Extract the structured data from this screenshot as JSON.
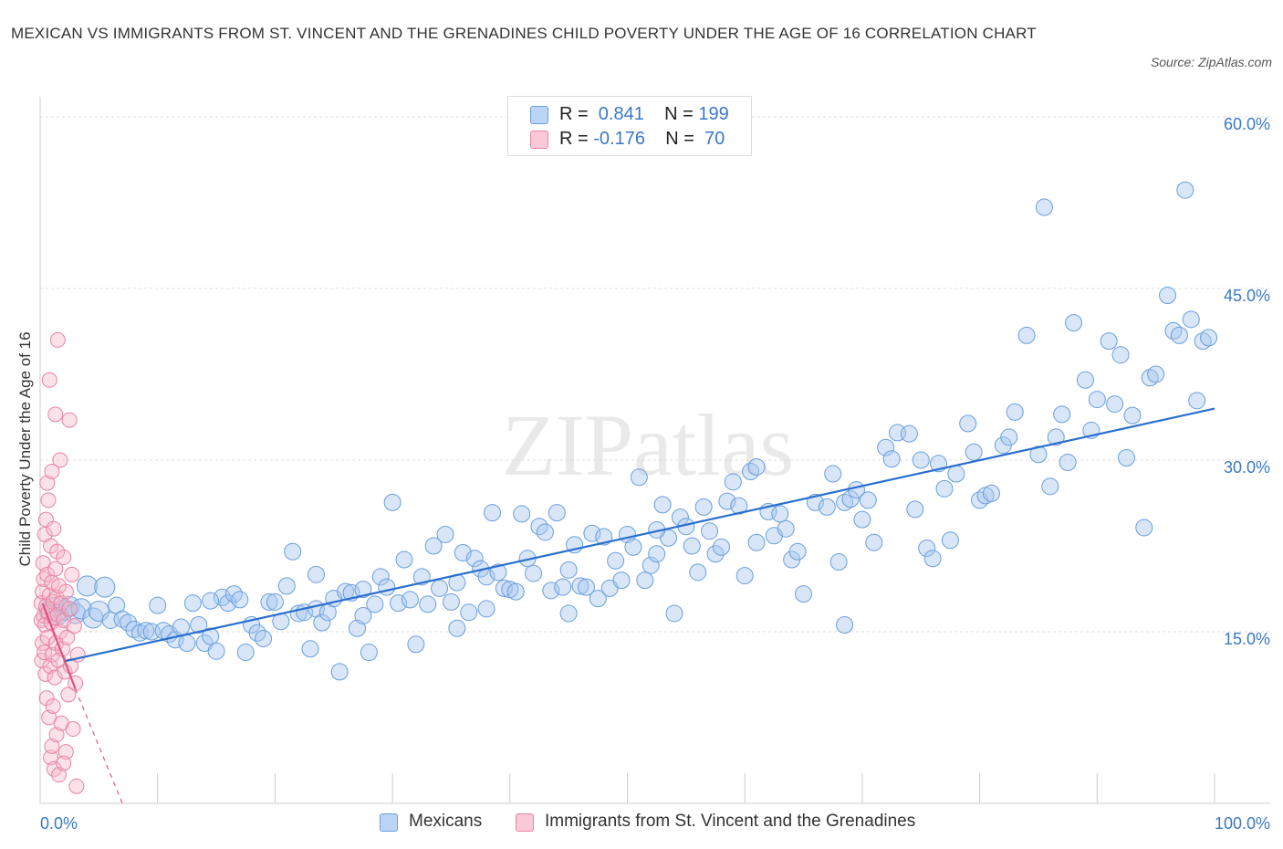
{
  "title": "MEXICAN VS IMMIGRANTS FROM ST. VINCENT AND THE GRENADINES CHILD POVERTY UNDER THE AGE OF 16 CORRELATION CHART",
  "source": "Source: ZipAtlas.com",
  "watermark": "ZIPatlas",
  "colors": {
    "mexicans_fill": "#a9c8f0",
    "mexicans_stroke": "#6a9fdc",
    "mexicans_line": "#2a6fcf",
    "immigrants_fill": "#f5b7c9",
    "immigrants_stroke": "#e883a3",
    "immigrants_line": "#e0527f",
    "axis_label": "#3a78c9"
  },
  "legend": {
    "rows": [
      {
        "r_label": "R = ",
        "r_value": " 0.841",
        "n_label": "N = ",
        "n_value": "199"
      },
      {
        "r_label": "R = ",
        "r_value": "-0.176",
        "n_label": "N = ",
        "n_value": " 70"
      }
    ]
  },
  "chart_data": {
    "type": "scatter",
    "title": "MEXICAN VS IMMIGRANTS FROM ST. VINCENT AND THE GRENADINES CHILD POVERTY UNDER THE AGE OF 16 CORRELATION CHART",
    "xlabel": "",
    "ylabel": "Child Poverty Under the Age of 16",
    "xlim": [
      0,
      100
    ],
    "ylim": [
      0,
      60
    ],
    "x_tick_labels": [
      "0.0%",
      "100.0%"
    ],
    "y_ticks": [
      15,
      30,
      45,
      60
    ],
    "y_tick_labels": [
      "15.0%",
      "30.0%",
      "45.0%",
      "60.0%"
    ],
    "grid": "horizontal dashed",
    "legend_position": "top-center",
    "series": [
      {
        "name": "Mexicans",
        "r": 0.841,
        "n": 199,
        "trend": {
          "x0": 2,
          "y0": 12.4,
          "x1": 100,
          "y1": 34.5
        },
        "points": [
          [
            0.8,
            16.8
          ],
          [
            1.2,
            17.1
          ],
          [
            1.5,
            16.5
          ],
          [
            2,
            16.9
          ],
          [
            2.5,
            17.2
          ],
          [
            3,
            16.6
          ],
          [
            3.5,
            17.0
          ],
          [
            4,
            19.0
          ],
          [
            4.5,
            16.2
          ],
          [
            5,
            16.8
          ],
          [
            5.5,
            18.9
          ],
          [
            6,
            16.0
          ],
          [
            6.5,
            17.3
          ],
          [
            7,
            16.1
          ],
          [
            7.5,
            15.8
          ],
          [
            8,
            15.2
          ],
          [
            8.5,
            14.9
          ],
          [
            9,
            15.1
          ],
          [
            9.5,
            15.0
          ],
          [
            10,
            17.3
          ],
          [
            10.5,
            15.1
          ],
          [
            11,
            14.8
          ],
          [
            11.5,
            14.3
          ],
          [
            12,
            15.4
          ],
          [
            12.5,
            14.0
          ],
          [
            13,
            17.5
          ],
          [
            13.5,
            15.6
          ],
          [
            14,
            14.0
          ],
          [
            14.5,
            14.6
          ],
          [
            15,
            13.3
          ],
          [
            15.5,
            18.0
          ],
          [
            16,
            17.5
          ],
          [
            16.5,
            18.3
          ],
          [
            17,
            17.8
          ],
          [
            17.5,
            13.2
          ],
          [
            18,
            15.6
          ],
          [
            18.5,
            14.9
          ],
          [
            19,
            14.4
          ],
          [
            19.5,
            17.6
          ],
          [
            20,
            17.6
          ],
          [
            20.5,
            15.9
          ],
          [
            21,
            19.0
          ],
          [
            21.5,
            22.0
          ],
          [
            22,
            16.6
          ],
          [
            22.5,
            16.7
          ],
          [
            23,
            13.5
          ],
          [
            23.5,
            17.0
          ],
          [
            24,
            15.8
          ],
          [
            24.5,
            16.7
          ],
          [
            25,
            17.9
          ],
          [
            25.5,
            11.5
          ],
          [
            26,
            18.5
          ],
          [
            26.5,
            18.4
          ],
          [
            27,
            15.3
          ],
          [
            27.5,
            18.7
          ],
          [
            28,
            13.2
          ],
          [
            28.5,
            17.4
          ],
          [
            29,
            19.8
          ],
          [
            29.5,
            18.9
          ],
          [
            30,
            26.3
          ],
          [
            30.5,
            17.5
          ],
          [
            31,
            21.3
          ],
          [
            31.5,
            17.8
          ],
          [
            32,
            13.9
          ],
          [
            32.5,
            19.8
          ],
          [
            33,
            17.4
          ],
          [
            33.5,
            22.5
          ],
          [
            34,
            18.8
          ],
          [
            34.5,
            23.5
          ],
          [
            35,
            17.6
          ],
          [
            35.5,
            19.3
          ],
          [
            36,
            21.9
          ],
          [
            36.5,
            16.7
          ],
          [
            37,
            21.4
          ],
          [
            37.5,
            20.5
          ],
          [
            38,
            19.8
          ],
          [
            38.5,
            25.4
          ],
          [
            39,
            20.2
          ],
          [
            39.5,
            18.8
          ],
          [
            40,
            18.7
          ],
          [
            40.5,
            18.5
          ],
          [
            41,
            25.3
          ],
          [
            41.5,
            21.4
          ],
          [
            42,
            20.1
          ],
          [
            42.5,
            24.2
          ],
          [
            43,
            23.7
          ],
          [
            43.5,
            18.6
          ],
          [
            44,
            25.4
          ],
          [
            44.5,
            18.9
          ],
          [
            45,
            20.4
          ],
          [
            45.5,
            22.6
          ],
          [
            46,
            19.0
          ],
          [
            46.5,
            18.9
          ],
          [
            47,
            23.6
          ],
          [
            47.5,
            17.9
          ],
          [
            48,
            23.3
          ],
          [
            48.5,
            18.8
          ],
          [
            49,
            21.2
          ],
          [
            49.5,
            19.5
          ],
          [
            50,
            23.5
          ],
          [
            50.5,
            22.4
          ],
          [
            51,
            28.5
          ],
          [
            51.5,
            19.5
          ],
          [
            52,
            20.8
          ],
          [
            52.5,
            21.8
          ],
          [
            53,
            26.1
          ],
          [
            53.5,
            23.2
          ],
          [
            54,
            16.6
          ],
          [
            54.5,
            25.0
          ],
          [
            55,
            24.2
          ],
          [
            55.5,
            22.5
          ],
          [
            56,
            20.2
          ],
          [
            56.5,
            25.9
          ],
          [
            57,
            23.8
          ],
          [
            57.5,
            21.8
          ],
          [
            58,
            22.4
          ],
          [
            58.5,
            26.4
          ],
          [
            59,
            28.1
          ],
          [
            59.5,
            26.0
          ],
          [
            60,
            19.9
          ],
          [
            60.5,
            29.0
          ],
          [
            61,
            29.4
          ],
          [
            62,
            25.5
          ],
          [
            62.5,
            23.4
          ],
          [
            63,
            25.3
          ],
          [
            63.5,
            24.0
          ],
          [
            64,
            21.3
          ],
          [
            64.5,
            22.0
          ],
          [
            65,
            18.3
          ],
          [
            66,
            26.3
          ],
          [
            67,
            25.9
          ],
          [
            67.5,
            28.8
          ],
          [
            68,
            21.1
          ],
          [
            68.5,
            26.3
          ],
          [
            69,
            26.6
          ],
          [
            69.5,
            27.4
          ],
          [
            70,
            24.8
          ],
          [
            70.5,
            26.5
          ],
          [
            71,
            22.8
          ],
          [
            72,
            31.1
          ],
          [
            72.5,
            30.1
          ],
          [
            73,
            32.4
          ],
          [
            74,
            32.3
          ],
          [
            74.5,
            25.7
          ],
          [
            75,
            30.0
          ],
          [
            75.5,
            22.3
          ],
          [
            76,
            21.4
          ],
          [
            76.5,
            29.7
          ],
          [
            77,
            27.5
          ],
          [
            77.5,
            23.0
          ],
          [
            78,
            28.8
          ],
          [
            79,
            33.2
          ],
          [
            79.5,
            30.7
          ],
          [
            80,
            26.5
          ],
          [
            80.5,
            26.9
          ],
          [
            81,
            27.1
          ],
          [
            82,
            31.3
          ],
          [
            82.5,
            32.0
          ],
          [
            83,
            34.2
          ],
          [
            84,
            40.9
          ],
          [
            85,
            30.5
          ],
          [
            85.5,
            52.1
          ],
          [
            86,
            27.7
          ],
          [
            86.5,
            32.0
          ],
          [
            87,
            34.0
          ],
          [
            87.5,
            29.8
          ],
          [
            88,
            42.0
          ],
          [
            89,
            37.0
          ],
          [
            89.5,
            32.6
          ],
          [
            90,
            35.3
          ],
          [
            91,
            40.4
          ],
          [
            91.5,
            34.9
          ],
          [
            92,
            39.2
          ],
          [
            92.5,
            30.2
          ],
          [
            93,
            33.9
          ],
          [
            94,
            24.1
          ],
          [
            94.5,
            37.2
          ],
          [
            95,
            37.5
          ],
          [
            96,
            44.4
          ],
          [
            96.5,
            41.3
          ],
          [
            97,
            40.9
          ],
          [
            97.5,
            53.6
          ],
          [
            98,
            42.3
          ],
          [
            98.5,
            35.2
          ],
          [
            99,
            40.4
          ],
          [
            99.5,
            40.7
          ],
          [
            35.5,
            15.3
          ],
          [
            52.5,
            23.9
          ],
          [
            27.5,
            16.4
          ],
          [
            45,
            16.6
          ],
          [
            61,
            22.8
          ],
          [
            14.5,
            17.7
          ],
          [
            23.5,
            20.0
          ],
          [
            38,
            17.0
          ],
          [
            68.5,
            15.6
          ]
        ]
      },
      {
        "name": "Immigrants from St. Vincent and the Grenadines",
        "r": -0.176,
        "n": 70,
        "trend": {
          "x0": 0.2,
          "y0": 17.5,
          "x1": 3.0,
          "y1": 10.0,
          "dash_x1": 7.0,
          "dash_y1": 0
        },
        "points": [
          [
            0.1,
            16.0
          ],
          [
            0.1,
            17.5
          ],
          [
            0.15,
            12.5
          ],
          [
            0.2,
            18.5
          ],
          [
            0.2,
            14.0
          ],
          [
            0.25,
            21.0
          ],
          [
            0.3,
            16.4
          ],
          [
            0.3,
            19.6
          ],
          [
            0.35,
            13.2
          ],
          [
            0.4,
            15.6
          ],
          [
            0.4,
            23.5
          ],
          [
            0.45,
            11.3
          ],
          [
            0.5,
            17.2
          ],
          [
            0.5,
            24.8
          ],
          [
            0.55,
            9.2
          ],
          [
            0.6,
            20.0
          ],
          [
            0.6,
            28.0
          ],
          [
            0.65,
            14.5
          ],
          [
            0.7,
            16.7
          ],
          [
            0.7,
            26.5
          ],
          [
            0.75,
            7.5
          ],
          [
            0.8,
            18.2
          ],
          [
            0.8,
            37.0
          ],
          [
            0.85,
            12.0
          ],
          [
            0.9,
            22.5
          ],
          [
            0.9,
            4.0
          ],
          [
            0.95,
            15.8
          ],
          [
            1.0,
            19.3
          ],
          [
            1.0,
            5.0
          ],
          [
            1.05,
            13.0
          ],
          [
            1.1,
            17.6
          ],
          [
            1.1,
            8.5
          ],
          [
            1.15,
            24.0
          ],
          [
            1.2,
            16.2
          ],
          [
            1.2,
            3.0
          ],
          [
            1.25,
            11.0
          ],
          [
            1.3,
            20.5
          ],
          [
            1.3,
            34.0
          ],
          [
            1.35,
            14.0
          ],
          [
            1.4,
            18.0
          ],
          [
            1.4,
            6.0
          ],
          [
            1.45,
            22.0
          ],
          [
            1.5,
            16.5
          ],
          [
            1.5,
            40.5
          ],
          [
            1.55,
            12.5
          ],
          [
            1.6,
            19.0
          ],
          [
            1.6,
            2.5
          ],
          [
            1.7,
            15.0
          ],
          [
            1.7,
            30.0
          ],
          [
            1.8,
            17.5
          ],
          [
            1.8,
            7.0
          ],
          [
            1.9,
            13.5
          ],
          [
            2.0,
            16.0
          ],
          [
            2.0,
            21.5
          ],
          [
            2.1,
            11.5
          ],
          [
            2.2,
            18.5
          ],
          [
            2.2,
            4.5
          ],
          [
            2.3,
            14.5
          ],
          [
            2.4,
            9.5
          ],
          [
            2.5,
            17.0
          ],
          [
            2.6,
            12.0
          ],
          [
            2.7,
            20.0
          ],
          [
            2.8,
            6.5
          ],
          [
            2.9,
            15.5
          ],
          [
            3.0,
            10.5
          ],
          [
            3.1,
            1.5
          ],
          [
            3.2,
            13.0
          ],
          [
            2.5,
            33.5
          ],
          [
            2.0,
            3.5
          ],
          [
            1.0,
            29.0
          ]
        ]
      }
    ]
  },
  "bottom_legend": {
    "items": [
      {
        "label": "Mexicans"
      },
      {
        "label": "Immigrants from St. Vincent and the Grenadines"
      }
    ]
  }
}
